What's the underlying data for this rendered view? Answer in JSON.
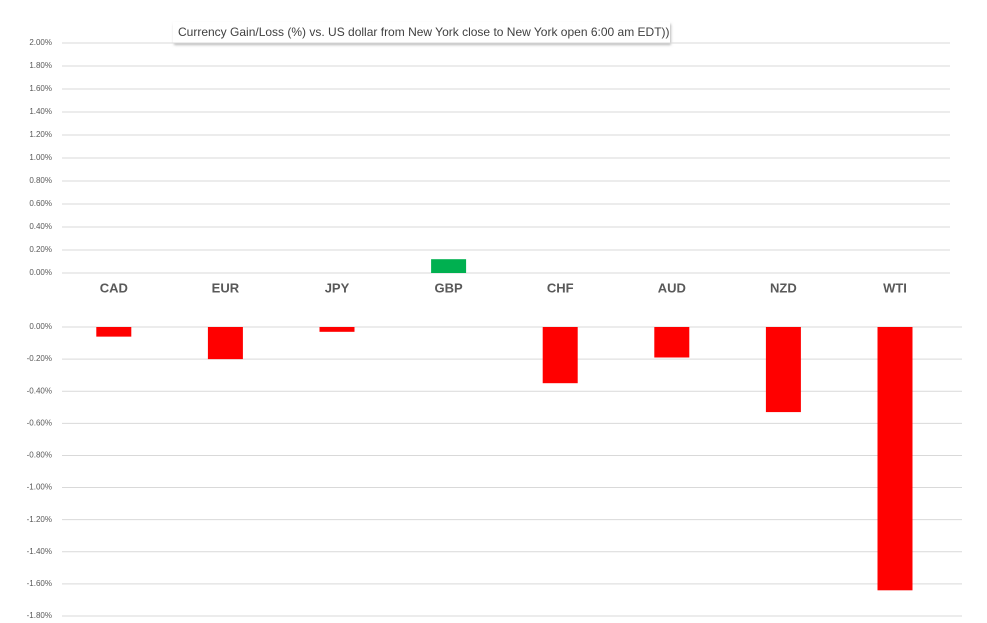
{
  "chart_data": [
    {
      "type": "bar",
      "title": "Currency  Gain/Loss (%) vs. US dollar  from New York  close to  New York open 6:00 am EDT))",
      "categories": [
        "CAD",
        "EUR",
        "JPY",
        "GBP",
        "CHF",
        "AUD",
        "NZD",
        "WTI"
      ],
      "values": [
        null,
        null,
        null,
        0.12,
        null,
        null,
        null,
        null
      ],
      "color": "#00b050",
      "ylim": [
        0,
        2
      ],
      "yticks": [
        {
          "value": 0,
          "label": "0.00%"
        },
        {
          "value": 0.2,
          "label": "0.20%"
        },
        {
          "value": 0.4,
          "label": "0.40%"
        },
        {
          "value": 0.6,
          "label": "0.60%"
        },
        {
          "value": 0.8,
          "label": "0.80%"
        },
        {
          "value": 1,
          "label": "1.00%"
        },
        {
          "value": 1.2,
          "label": "1.20%"
        },
        {
          "value": 1.4,
          "label": "1.40%"
        },
        {
          "value": 1.6,
          "label": "1.60%"
        },
        {
          "value": 1.8,
          "label": "1.80%"
        },
        {
          "value": 2,
          "label": "2.00%"
        }
      ],
      "grid": true
    },
    {
      "type": "bar",
      "values": [
        -0.06,
        -0.2,
        -0.03,
        null,
        -0.35,
        -0.19,
        -0.53,
        -1.64
      ],
      "color": "#ff0000",
      "ylim": [
        -1.8,
        0
      ],
      "yticks": [
        {
          "value": 0,
          "label": "0.00%"
        },
        {
          "value": -0.2,
          "label": "-0.20%"
        },
        {
          "value": -0.4,
          "label": "-0.40%"
        },
        {
          "value": -0.6,
          "label": "-0.60%"
        },
        {
          "value": -0.8,
          "label": "-0.80%"
        },
        {
          "value": -1,
          "label": "-1.00%"
        },
        {
          "value": -1.2,
          "label": "-1.20%"
        },
        {
          "value": -1.4,
          "label": "-1.40%"
        },
        {
          "value": -1.6,
          "label": "-1.60%"
        },
        {
          "value": -1.8,
          "label": "-1.80%"
        }
      ],
      "grid": true
    }
  ]
}
